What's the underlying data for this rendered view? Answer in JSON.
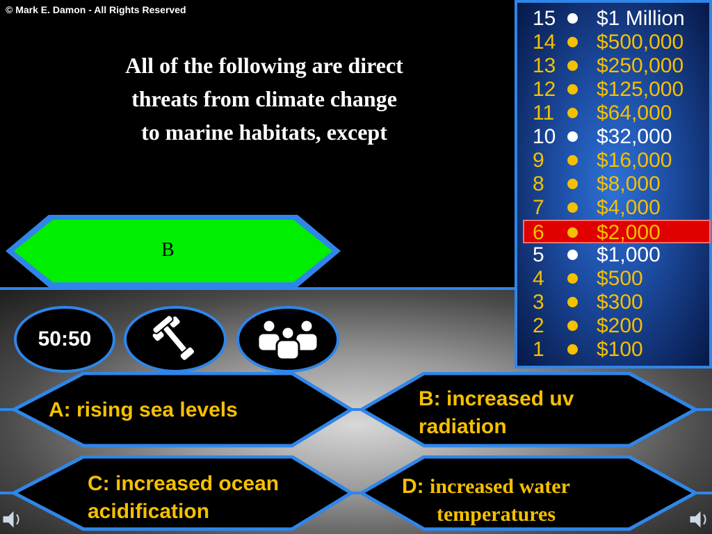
{
  "copyright": "© Mark E. Damon - All Rights Reserved",
  "question": {
    "lines": [
      "All of the following are direct",
      "threats from climate change",
      "to marine habitats,  except"
    ]
  },
  "answer_reveal": "B",
  "lifelines": {
    "fifty_fifty": "50:50",
    "phone_icon": "phone-icon",
    "audience_icon": "audience-icon"
  },
  "answers": {
    "a": {
      "line1": "A:  rising sea levels"
    },
    "b": {
      "line1": "B:  increased uv",
      "line2": "radiation"
    },
    "c": {
      "line1": "C:  increased ocean",
      "line2": "acidification"
    },
    "d": {
      "prefix": "D:",
      "line1": "increased water",
      "line2": "temperatures"
    }
  },
  "prize_ladder": [
    {
      "level": "15",
      "amount": "$1 Million",
      "milestone": true
    },
    {
      "level": "14",
      "amount": "$500,000"
    },
    {
      "level": "13",
      "amount": "$250,000"
    },
    {
      "level": "12",
      "amount": "$125,000"
    },
    {
      "level": "11",
      "amount": "$64,000"
    },
    {
      "level": "10",
      "amount": "$32,000",
      "milestone": true
    },
    {
      "level": "9",
      "amount": "$16,000"
    },
    {
      "level": "8",
      "amount": "$8,000"
    },
    {
      "level": "7",
      "amount": "$4,000"
    },
    {
      "level": "6",
      "amount": "$2,000",
      "current": true
    },
    {
      "level": "5",
      "amount": "$1,000",
      "milestone": true
    },
    {
      "level": "4",
      "amount": "$500"
    },
    {
      "level": "3",
      "amount": "$300"
    },
    {
      "level": "2",
      "amount": "$200"
    },
    {
      "level": "1",
      "amount": "$100"
    }
  ],
  "colors": {
    "accent_blue": "#2f86e8",
    "gold": "#f5c000",
    "correct_green": "#00ee00",
    "current_red": "#e00000"
  }
}
